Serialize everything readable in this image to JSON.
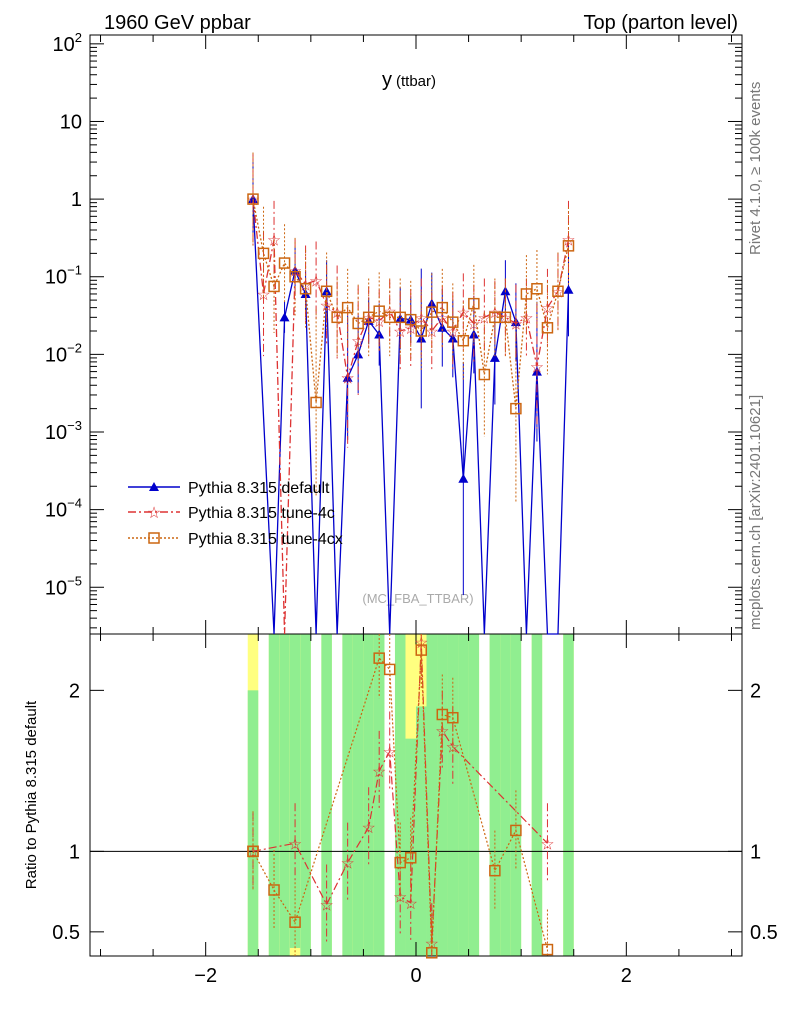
{
  "header": {
    "left": "1960 GeV ppbar",
    "right": "Top (parton level)"
  },
  "side": {
    "top": "Rivet 4.1.0, ≥ 100k events",
    "bottom": "mcplots.cern.ch [arXiv:2401.10621]"
  },
  "chart_data": {
    "type": "line",
    "title_main": "y",
    "title_sub": "(ttbar)",
    "watermark": "(MC_FBA_TTBAR)",
    "x_range": [
      -3.1,
      3.1
    ],
    "x_ticks": [
      -2,
      0,
      2
    ],
    "x_tick_labels": [
      "−2",
      "0",
      "2"
    ],
    "y_scale": "log",
    "y_range": [
      2.5e-06,
      130
    ],
    "y_tick_labels": [
      {
        "v": 100,
        "b": "10",
        "e": "2"
      },
      {
        "v": 10,
        "b": "10",
        "e": ""
      },
      {
        "v": 1,
        "b": "1",
        "e": ""
      },
      {
        "v": 0.1,
        "b": "10",
        "e": "−1"
      },
      {
        "v": 0.01,
        "b": "10",
        "e": "−2"
      },
      {
        "v": 0.001,
        "b": "10",
        "e": "−3"
      },
      {
        "v": 0.0001,
        "b": "10",
        "e": "−4"
      },
      {
        "v": 1e-05,
        "b": "10",
        "e": "−5"
      }
    ],
    "ratio_ylabel": "Ratio to Pythia 8.315 default",
    "ratio_range": [
      0.35,
      2.35
    ],
    "ratio_ticks": [
      0.5,
      1,
      2
    ],
    "ratio_tick_labels": [
      "0.5",
      "1",
      "2"
    ],
    "colors": {
      "default": "#0000cc",
      "tune4c": "#dd3333",
      "tune4cx": "#cc6611",
      "band_green": "#90ee90",
      "band_yellow": "#ffff80"
    },
    "legend": [
      "Pythia 8.315 default",
      "Pythia 8.315 tune-4c",
      "Pythia 8.315 tune-4cx"
    ],
    "series": [
      {
        "name": "Pythia 8.315 default",
        "x": [
          -1.55,
          -1.35,
          -1.25,
          -1.15,
          -1.05,
          -0.95,
          -0.85,
          -0.75,
          -0.65,
          -0.55,
          -0.45,
          -0.35,
          -0.25,
          -0.15,
          -0.05,
          0.05,
          0.15,
          0.25,
          0.35,
          0.45,
          0.55,
          0.65,
          0.75,
          0.85,
          0.95,
          1.05,
          1.15,
          1.25,
          1.35,
          1.45
        ],
        "y": [
          1.0,
          0,
          0.03,
          0.12,
          0.06,
          0,
          0.065,
          0,
          0.005,
          0.01,
          0.027,
          0.018,
          0,
          0.029,
          0.028,
          0.016,
          0.045,
          0.022,
          0.016,
          0.00025,
          0.018,
          0,
          0.009,
          0.065,
          0.026,
          0,
          0.006,
          0,
          0,
          0.068
        ],
        "err": [
          0.5,
          0,
          0.2,
          0.3,
          0.3,
          0,
          0.4,
          0,
          0.8,
          0.5,
          0.3,
          0.4,
          0,
          0.4,
          0.3,
          0.9,
          0.4,
          0.5,
          0.5,
          1.5,
          0.5,
          0,
          0.6,
          0.4,
          0.5,
          0,
          0.9,
          0,
          0,
          0.6
        ]
      },
      {
        "name": "Pythia 8.315 tune-4c",
        "x": [
          -1.55,
          -1.45,
          -1.35,
          -1.25,
          -1.15,
          -1.05,
          -0.95,
          -0.85,
          -0.75,
          -0.65,
          -0.55,
          -0.45,
          -0.35,
          -0.25,
          -0.15,
          -0.05,
          0.05,
          0.15,
          0.25,
          0.35,
          0.45,
          0.55,
          0.65,
          0.75,
          0.85,
          0.95,
          1.05,
          1.15,
          1.25,
          1.35,
          1.45
        ],
        "y": [
          1.0,
          0.06,
          0.3,
          0,
          0.12,
          0.08,
          0.09,
          0.043,
          0.035,
          0.005,
          0.015,
          0.03,
          0.027,
          0.036,
          0.02,
          0.022,
          0.03,
          0.02,
          0.03,
          0.02,
          0.035,
          0.025,
          0.03,
          0.035,
          0.03,
          0.025,
          0.03,
          0.007,
          0.04,
          0.065,
          0.3
        ],
        "err": [
          0.6,
          0.8,
          0.5,
          0,
          0.4,
          0.5,
          0.5,
          0.5,
          0.6,
          0.9,
          0.7,
          0.4,
          0.4,
          0.4,
          0.5,
          0.5,
          0.5,
          0.5,
          0.4,
          0.5,
          0.5,
          0.5,
          0.5,
          0.4,
          0.5,
          0.5,
          0.5,
          0.8,
          0.5,
          0.5,
          0.5
        ]
      },
      {
        "name": "Pythia 8.315 tune-4cx",
        "x": [
          -1.55,
          -1.45,
          -1.35,
          -1.25,
          -1.15,
          -1.05,
          -0.95,
          -0.85,
          -0.75,
          -0.65,
          -0.55,
          -0.45,
          -0.35,
          -0.25,
          -0.15,
          -0.05,
          0.05,
          0.15,
          0.25,
          0.35,
          0.45,
          0.55,
          0.65,
          0.75,
          0.85,
          0.95,
          1.05,
          1.15,
          1.25,
          1.35,
          1.45
        ],
        "y": [
          1.0,
          0.2,
          0.075,
          0.15,
          0.1,
          0.07,
          0.0024,
          0.065,
          0.03,
          0.04,
          0.025,
          0.03,
          0.036,
          0.03,
          0.03,
          0.028,
          0.02,
          0.035,
          0.04,
          0.026,
          0.015,
          0.045,
          0.0055,
          0.03,
          0.03,
          0.002,
          0.06,
          0.07,
          0.022,
          0.065,
          0.25
        ],
        "err": [
          0.6,
          0.6,
          0.6,
          0.5,
          0.5,
          0.5,
          1.2,
          0.5,
          0.5,
          0.5,
          0.5,
          0.5,
          0.5,
          0.5,
          0.5,
          0.5,
          0.5,
          0.5,
          0.5,
          0.5,
          0.5,
          0.5,
          0.8,
          0.5,
          0.5,
          1.2,
          0.5,
          0.5,
          0.6,
          0.5,
          0.5
        ]
      }
    ],
    "ratio_series": [
      {
        "name": "Pythia 8.315 tune-4c",
        "x": [
          -1.55,
          -1.15,
          -0.85,
          -0.65,
          -0.45,
          -0.35,
          -0.25,
          -0.15,
          -0.05,
          0.05,
          0.15,
          0.25,
          0.35,
          1.25
        ],
        "y": [
          1.0,
          1.05,
          0.67,
          0.93,
          1.15,
          1.5,
          1.62,
          0.72,
          0.68,
          2.3,
          0.43,
          1.75,
          1.65,
          1.05
        ]
      },
      {
        "name": "Pythia 8.315 tune-4cx",
        "x": [
          -1.55,
          -1.35,
          -1.15,
          -0.35,
          -0.25,
          -0.15,
          -0.05,
          0.05,
          0.15,
          0.25,
          0.35,
          0.75,
          0.95,
          1.25
        ],
        "y": [
          1.0,
          0.76,
          0.56,
          2.2,
          2.13,
          0.93,
          0.96,
          2.25,
          0.37,
          1.85,
          1.83,
          0.88,
          1.13,
          0.39
        ]
      }
    ],
    "band": {
      "x": [
        -1.55,
        -1.45,
        -1.35,
        -1.25,
        -1.15,
        -1.05,
        -0.95,
        -0.85,
        -0.75,
        -0.65,
        -0.55,
        -0.45,
        -0.35,
        -0.25,
        -0.15,
        -0.05,
        0.05,
        0.15,
        0.25,
        0.35,
        0.45,
        0.55,
        0.65,
        0.75,
        0.85,
        0.95,
        1.05,
        1.15,
        1.25,
        1.35,
        1.45
      ],
      "lo": [
        0.35,
        0,
        0.35,
        0.35,
        0.4,
        0.35,
        0,
        0.35,
        0,
        0.35,
        0.35,
        0.35,
        0.35,
        0,
        0.35,
        0.35,
        0.35,
        0.35,
        0.35,
        0.35,
        0.35,
        0.35,
        0,
        0.35,
        0.35,
        0.35,
        0,
        0.35,
        0,
        0,
        0.35
      ],
      "hi": [
        2.0,
        0,
        2.35,
        2.35,
        2.35,
        2.35,
        0,
        2.35,
        0,
        2.35,
        2.35,
        2.35,
        2.35,
        0,
        2.35,
        1.7,
        1.9,
        2.35,
        2.35,
        2.35,
        2.35,
        2.35,
        0,
        2.35,
        2.35,
        2.35,
        0,
        2.35,
        0,
        0,
        2.35
      ],
      "ylo": [
        0.35,
        0,
        0.35,
        0.35,
        0.35,
        0.35,
        0,
        0.35,
        0,
        0.35,
        0.35,
        0.35,
        0.35,
        0,
        0.35,
        0.35,
        0.35,
        0.35,
        0.35,
        0.35,
        0.35,
        0.35,
        0,
        0.35,
        0.35,
        0.35,
        0,
        0.35,
        0,
        0,
        0.35
      ],
      "yhi": [
        2.35,
        0,
        2.35,
        2.35,
        2.35,
        2.35,
        0,
        2.35,
        0,
        2.35,
        2.35,
        2.35,
        2.35,
        0,
        2.35,
        2.35,
        2.35,
        2.35,
        2.35,
        2.35,
        2.35,
        2.35,
        0,
        2.35,
        2.35,
        2.35,
        0,
        2.35,
        0,
        0,
        2.35
      ]
    }
  }
}
